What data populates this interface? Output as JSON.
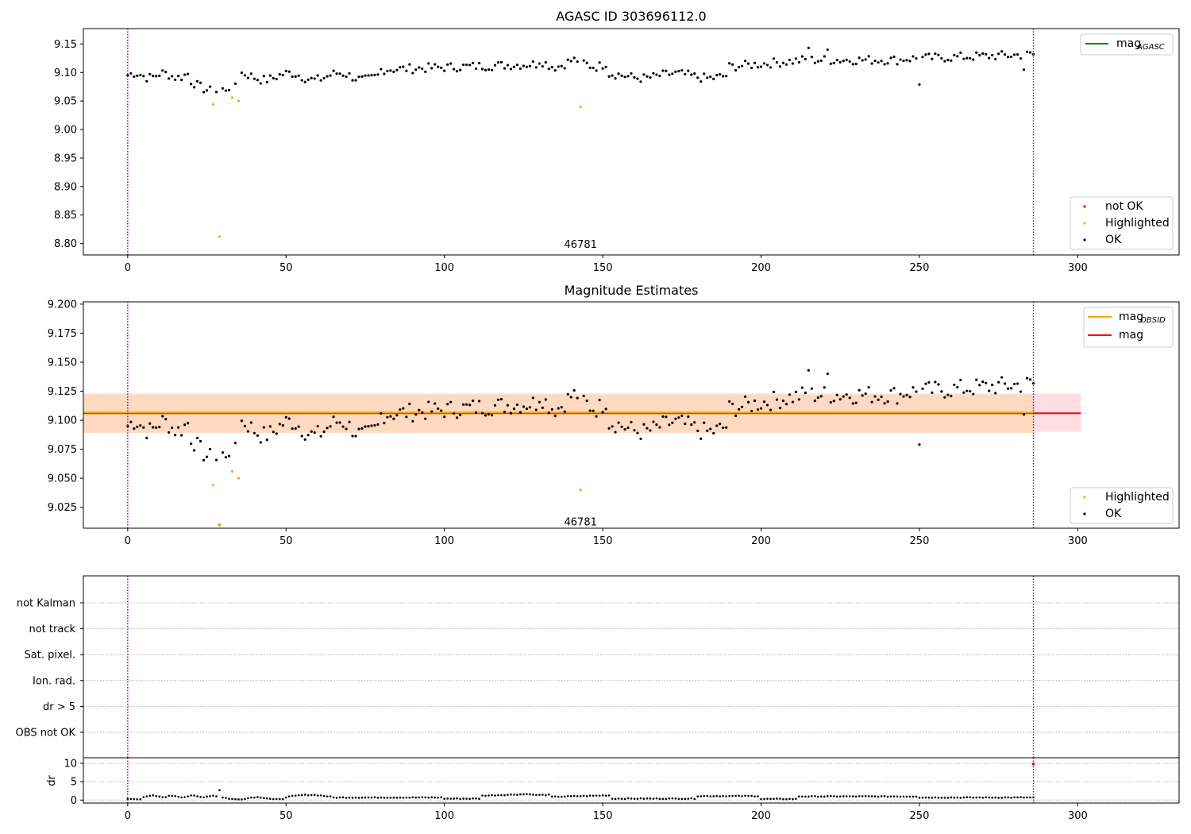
{
  "colors": {
    "ok": "#000000",
    "highlighted": "#ffa500",
    "not_ok": "#ff0000",
    "mag_agasc": "#008000",
    "mag_obsid": "#ffa500",
    "mag": "#ff0000",
    "vline": "#800080",
    "band_mag": "#ffc8d0",
    "band_obsid": "#ffd8b8"
  },
  "chart_data": [
    {
      "type": "scatter",
      "title": "AGASC ID 303696112.0",
      "xlim": [
        -14,
        332
      ],
      "ylim": [
        8.78,
        9.177
      ],
      "xticks": [
        "0",
        "50",
        "100",
        "150",
        "200",
        "250",
        "300"
      ],
      "yticks": [
        "8.80",
        "8.85",
        "8.90",
        "8.95",
        "9.00",
        "9.05",
        "9.10",
        "9.15"
      ],
      "vlines": [
        0,
        286
      ],
      "annotation": {
        "text": "46781",
        "x": 143,
        "y": 8.79
      },
      "legend_top": {
        "position": "top-right",
        "items": [
          {
            "name": "mag",
            "sub": "AGASC"
          }
        ]
      },
      "legend_bottom": {
        "position": "bottom-right",
        "items": [
          "not OK",
          "Highlighted",
          "OK"
        ]
      },
      "highlighted": [
        [
          27,
          9.044
        ],
        [
          29,
          8.812
        ],
        [
          33,
          9.056
        ],
        [
          35,
          9.05
        ],
        [
          143,
          9.04
        ]
      ]
    },
    {
      "type": "scatter",
      "title": "Magnitude Estimates",
      "xlim": [
        -14,
        332
      ],
      "ylim": [
        9.007,
        9.202
      ],
      "xticks": [
        "0",
        "50",
        "100",
        "150",
        "200",
        "250",
        "300"
      ],
      "yticks": [
        "9.025",
        "9.050",
        "9.075",
        "9.100",
        "9.125",
        "9.150",
        "9.175",
        "9.200"
      ],
      "vlines": [
        0,
        286
      ],
      "annotation": {
        "text": "46781",
        "x": 143,
        "y": 9.012
      },
      "mag_line": {
        "value": 9.106,
        "band": [
          9.09,
          9.123
        ],
        "x_range": [
          -14,
          301
        ]
      },
      "mag_obsid_line": {
        "value": 9.106,
        "band": [
          9.089,
          9.122
        ],
        "x_range": [
          -14,
          286
        ]
      },
      "legend_top": {
        "position": "top-right",
        "items": [
          {
            "name": "mag",
            "sub": "OBSID"
          },
          {
            "name": "mag",
            "sub": ""
          }
        ]
      },
      "legend_bottom": {
        "position": "bottom-right",
        "items": [
          "Highlighted",
          "OK"
        ]
      },
      "highlighted": [
        [
          27,
          9.044
        ],
        [
          33,
          9.056
        ],
        [
          35,
          9.05
        ],
        [
          143,
          9.04
        ]
      ],
      "offscale_marker": {
        "x": 29,
        "y": 9.009
      }
    },
    {
      "type": "scatter",
      "title": "",
      "xlim": [
        -14,
        332
      ],
      "categories": [
        "not Kalman",
        "not track",
        "Sat. pixel.",
        "Ion. rad.",
        "dr > 5",
        "OBS not OK"
      ],
      "vlines": [
        0,
        286
      ]
    },
    {
      "type": "scatter",
      "title": "",
      "ylabel": "dr",
      "xlim": [
        -14,
        332
      ],
      "ylim": [
        -0.8,
        11.5
      ],
      "xticks": [
        "0",
        "50",
        "100",
        "150",
        "200",
        "250",
        "300"
      ],
      "yticks": [
        "0",
        "5",
        "10"
      ],
      "vlines": [
        0,
        286
      ],
      "outlier": {
        "x": 29,
        "y": 2.7
      },
      "red_marker": {
        "x": 286,
        "y": 9.8
      }
    }
  ]
}
